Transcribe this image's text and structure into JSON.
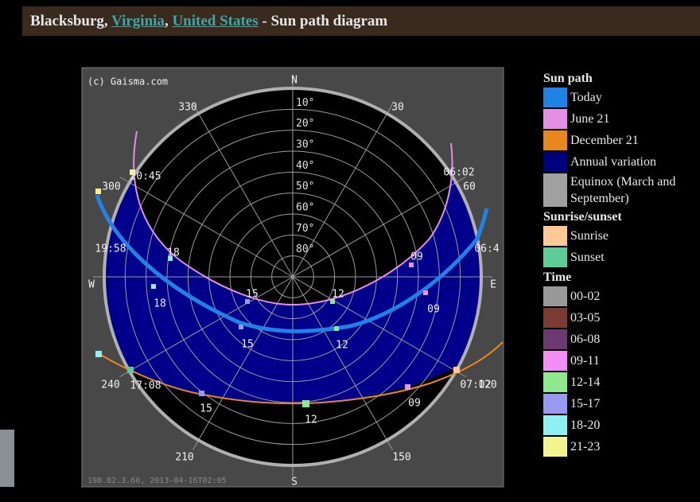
{
  "header": {
    "parts": [
      "Blacksburg, ",
      "Virginia",
      ", ",
      "United States",
      " - Sun path diagram"
    ]
  },
  "diagram": {
    "copyright": "(c) Gaisma.com",
    "north": "N",
    "south": "S",
    "east": "E",
    "west": "W",
    "rings": [
      "10°",
      "20°",
      "30°",
      "40°",
      "50°",
      "60°",
      "70°",
      "80°"
    ],
    "azimuths": [
      "330",
      "30",
      "60",
      "300",
      "240",
      "120",
      "210",
      "150"
    ],
    "path_labels": [
      "20:45",
      "06:02",
      "19:58",
      "06:4",
      "18",
      "09",
      "15",
      "12",
      "18",
      "09",
      "15",
      "12",
      "17:08",
      "07:02",
      "15",
      "09",
      "12"
    ],
    "footer": "198.82.3.60, 2013-04-16T02:05"
  },
  "legend": {
    "sections": [
      {
        "title": "Sun path",
        "items": [
          {
            "label": "Today",
            "color": "#1e82e6"
          },
          {
            "label": "June 21",
            "color": "#e58ee5"
          },
          {
            "label": "December 21",
            "color": "#e8871e"
          },
          {
            "label": "Annual variation",
            "color": "#00007f"
          },
          {
            "label": "Equinox (March and September)",
            "color": "#a0a0a0"
          }
        ]
      },
      {
        "title": "Sunrise/sunset",
        "items": [
          {
            "label": "Sunrise",
            "color": "#ffc896"
          },
          {
            "label": "Sunset",
            "color": "#5ecc96"
          }
        ]
      },
      {
        "title": "Time",
        "items": [
          {
            "label": "00-02",
            "color": "#999999"
          },
          {
            "label": "03-05",
            "color": "#7a3b35"
          },
          {
            "label": "06-08",
            "color": "#6b3a73"
          },
          {
            "label": "09-11",
            "color": "#f48ef4"
          },
          {
            "label": "12-14",
            "color": "#8ee88e"
          },
          {
            "label": "15-17",
            "color": "#9999f0"
          },
          {
            "label": "18-20",
            "color": "#8ef0f4"
          },
          {
            "label": "21-23",
            "color": "#f4f48e"
          }
        ]
      }
    ]
  }
}
